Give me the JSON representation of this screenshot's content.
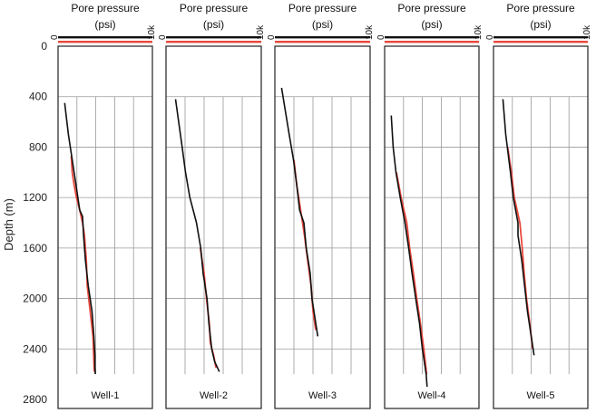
{
  "chart_data": {
    "type": "line",
    "y_axis": {
      "label": "Depth (m)",
      "range": [
        0,
        2800
      ],
      "ticks": [
        "0",
        "400",
        "800",
        "1200",
        "1600",
        "2000",
        "2400",
        "2800"
      ],
      "inverted": true,
      "grid": true
    },
    "x_axis": {
      "label_line1": "Pore pressure",
      "label_line2": "(psi)",
      "range": [
        0,
        10000
      ],
      "tick_min": "0",
      "tick_max": "10k",
      "vertical_grid_divisions": 5
    },
    "colors": {
      "series_a": "#111111",
      "series_b": "#e8473c",
      "grid": "#9a9a9a",
      "border": "#222222"
    },
    "panels": [
      {
        "name": "Well-1",
        "series_a": [
          [
            450,
            700
          ],
          [
            700,
            1100
          ],
          [
            900,
            1500
          ],
          [
            1100,
            1900
          ],
          [
            1300,
            2300
          ],
          [
            1350,
            2600
          ],
          [
            1500,
            2700
          ],
          [
            1700,
            2900
          ],
          [
            1900,
            3200
          ],
          [
            2100,
            3600
          ],
          [
            2300,
            3800
          ],
          [
            2450,
            3900
          ],
          [
            2550,
            3900
          ],
          [
            2600,
            3950
          ]
        ],
        "series_b": [
          [
            870,
            1400
          ],
          [
            1000,
            1500
          ],
          [
            1100,
            1700
          ],
          [
            1200,
            1950
          ],
          [
            1300,
            2300
          ],
          [
            1400,
            2600
          ],
          [
            1500,
            2800
          ],
          [
            1700,
            3000
          ],
          [
            1900,
            3100
          ],
          [
            2100,
            3400
          ],
          [
            2300,
            3700
          ],
          [
            2500,
            3800
          ],
          [
            2580,
            3850
          ]
        ]
      },
      {
        "name": "Well-2",
        "series_a": [
          [
            420,
            1000
          ],
          [
            800,
            1700
          ],
          [
            1000,
            2050
          ],
          [
            1200,
            2500
          ],
          [
            1400,
            3200
          ],
          [
            1600,
            3650
          ],
          [
            1800,
            3900
          ],
          [
            2000,
            4300
          ],
          [
            2200,
            4500
          ],
          [
            2400,
            4800
          ],
          [
            2500,
            5100
          ],
          [
            2580,
            5600
          ]
        ],
        "series_b": [
          [
            1600,
            3600
          ],
          [
            1800,
            4000
          ],
          [
            2000,
            4250
          ],
          [
            2200,
            4550
          ],
          [
            2350,
            4650
          ],
          [
            2450,
            5000
          ],
          [
            2550,
            5250
          ]
        ]
      },
      {
        "name": "Well-3",
        "series_a": [
          [
            330,
            700
          ],
          [
            700,
            1500
          ],
          [
            900,
            1950
          ],
          [
            1100,
            2300
          ],
          [
            1300,
            2600
          ],
          [
            1400,
            3050
          ],
          [
            1600,
            3300
          ],
          [
            1800,
            3700
          ],
          [
            2000,
            3900
          ],
          [
            2150,
            4200
          ],
          [
            2300,
            4500
          ]
        ],
        "series_b": [
          [
            900,
            2000
          ],
          [
            1100,
            2300
          ],
          [
            1300,
            2700
          ],
          [
            1500,
            3100
          ],
          [
            1700,
            3450
          ],
          [
            1900,
            3800
          ],
          [
            2100,
            4000
          ],
          [
            2250,
            4300
          ]
        ]
      },
      {
        "name": "Well-4",
        "series_a": [
          [
            550,
            700
          ],
          [
            800,
            900
          ],
          [
            1000,
            1200
          ],
          [
            1200,
            1650
          ],
          [
            1400,
            2150
          ],
          [
            1600,
            2550
          ],
          [
            1800,
            2900
          ],
          [
            2000,
            3300
          ],
          [
            2200,
            3700
          ],
          [
            2400,
            4000
          ],
          [
            2600,
            4400
          ],
          [
            2700,
            4500
          ]
        ],
        "series_b": [
          [
            1000,
            1250
          ],
          [
            1200,
            1750
          ],
          [
            1400,
            2350
          ],
          [
            1600,
            2650
          ],
          [
            1800,
            3050
          ],
          [
            2000,
            3400
          ],
          [
            2200,
            3800
          ],
          [
            2400,
            4150
          ],
          [
            2600,
            4450
          ]
        ]
      },
      {
        "name": "Well-5",
        "series_a": [
          [
            420,
            1000
          ],
          [
            700,
            1300
          ],
          [
            1000,
            1800
          ],
          [
            1200,
            2100
          ],
          [
            1400,
            2600
          ],
          [
            1500,
            2600
          ],
          [
            1700,
            3000
          ],
          [
            1900,
            3300
          ],
          [
            2100,
            3600
          ],
          [
            2300,
            4000
          ],
          [
            2400,
            4200
          ],
          [
            2450,
            4300
          ]
        ],
        "series_b": [
          [
            800,
            1500
          ],
          [
            1000,
            1900
          ],
          [
            1200,
            2200
          ],
          [
            1400,
            2800
          ],
          [
            1600,
            3050
          ],
          [
            1800,
            3250
          ],
          [
            2000,
            3500
          ],
          [
            2200,
            3850
          ],
          [
            2400,
            4150
          ]
        ]
      }
    ]
  }
}
